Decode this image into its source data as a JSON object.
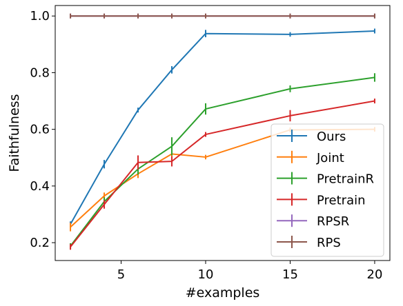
{
  "chart_data": {
    "type": "line",
    "xlabel": "#examples",
    "ylabel": "Faithfulness",
    "xlim": [
      1.1,
      20.9
    ],
    "ylim": [
      0.137,
      1.037
    ],
    "xticks": [
      5,
      10,
      15,
      20
    ],
    "yticks": [
      0.2,
      0.4,
      0.6,
      0.8,
      1.0
    ],
    "xtick_labels": [
      "5",
      "10",
      "15",
      "20"
    ],
    "ytick_labels": [
      "0.2",
      "0.4",
      "0.6",
      "0.8",
      "1.0"
    ],
    "grid": false,
    "legend_position": "lower-right",
    "x": [
      2,
      4,
      6,
      8,
      10,
      15,
      20
    ],
    "series": [
      {
        "name": "Ours",
        "color": "#1f77b4",
        "values": [
          0.265,
          0.477,
          0.668,
          0.81,
          0.938,
          0.935,
          0.947
        ],
        "errors": [
          0.01,
          0.015,
          0.005,
          0.013,
          0.013,
          0.008,
          0.006
        ]
      },
      {
        "name": "Joint",
        "color": "#ff7f0e",
        "values": [
          0.255,
          0.365,
          0.443,
          0.513,
          0.502,
          0.598,
          0.6
        ],
        "errors": [
          0.015,
          0.012,
          0.015,
          0.01,
          0.008,
          0.006,
          0.008
        ]
      },
      {
        "name": "PretrainR",
        "color": "#2ca02c",
        "values": [
          0.188,
          0.345,
          0.46,
          0.54,
          0.672,
          0.743,
          0.783
        ],
        "errors": [
          0.01,
          0.015,
          0.02,
          0.032,
          0.02,
          0.012,
          0.015
        ]
      },
      {
        "name": "Pretrain",
        "color": "#d62728",
        "values": [
          0.185,
          0.335,
          0.483,
          0.487,
          0.582,
          0.648,
          0.7
        ],
        "errors": [
          0.01,
          0.015,
          0.025,
          0.018,
          0.006,
          0.02,
          0.006
        ]
      },
      {
        "name": "RPSR",
        "color": "#9467bd",
        "values": [
          1.0,
          1.0,
          1.0,
          1.0,
          1.0,
          1.0,
          1.0
        ],
        "errors": [
          0,
          0,
          0,
          0,
          0,
          0,
          0
        ]
      },
      {
        "name": "RPS",
        "color": "#8c564b",
        "values": [
          1.0,
          1.0,
          1.0,
          1.0,
          1.0,
          1.0,
          1.0
        ],
        "errors": [
          0,
          0,
          0,
          0,
          0,
          0,
          0
        ]
      }
    ]
  }
}
